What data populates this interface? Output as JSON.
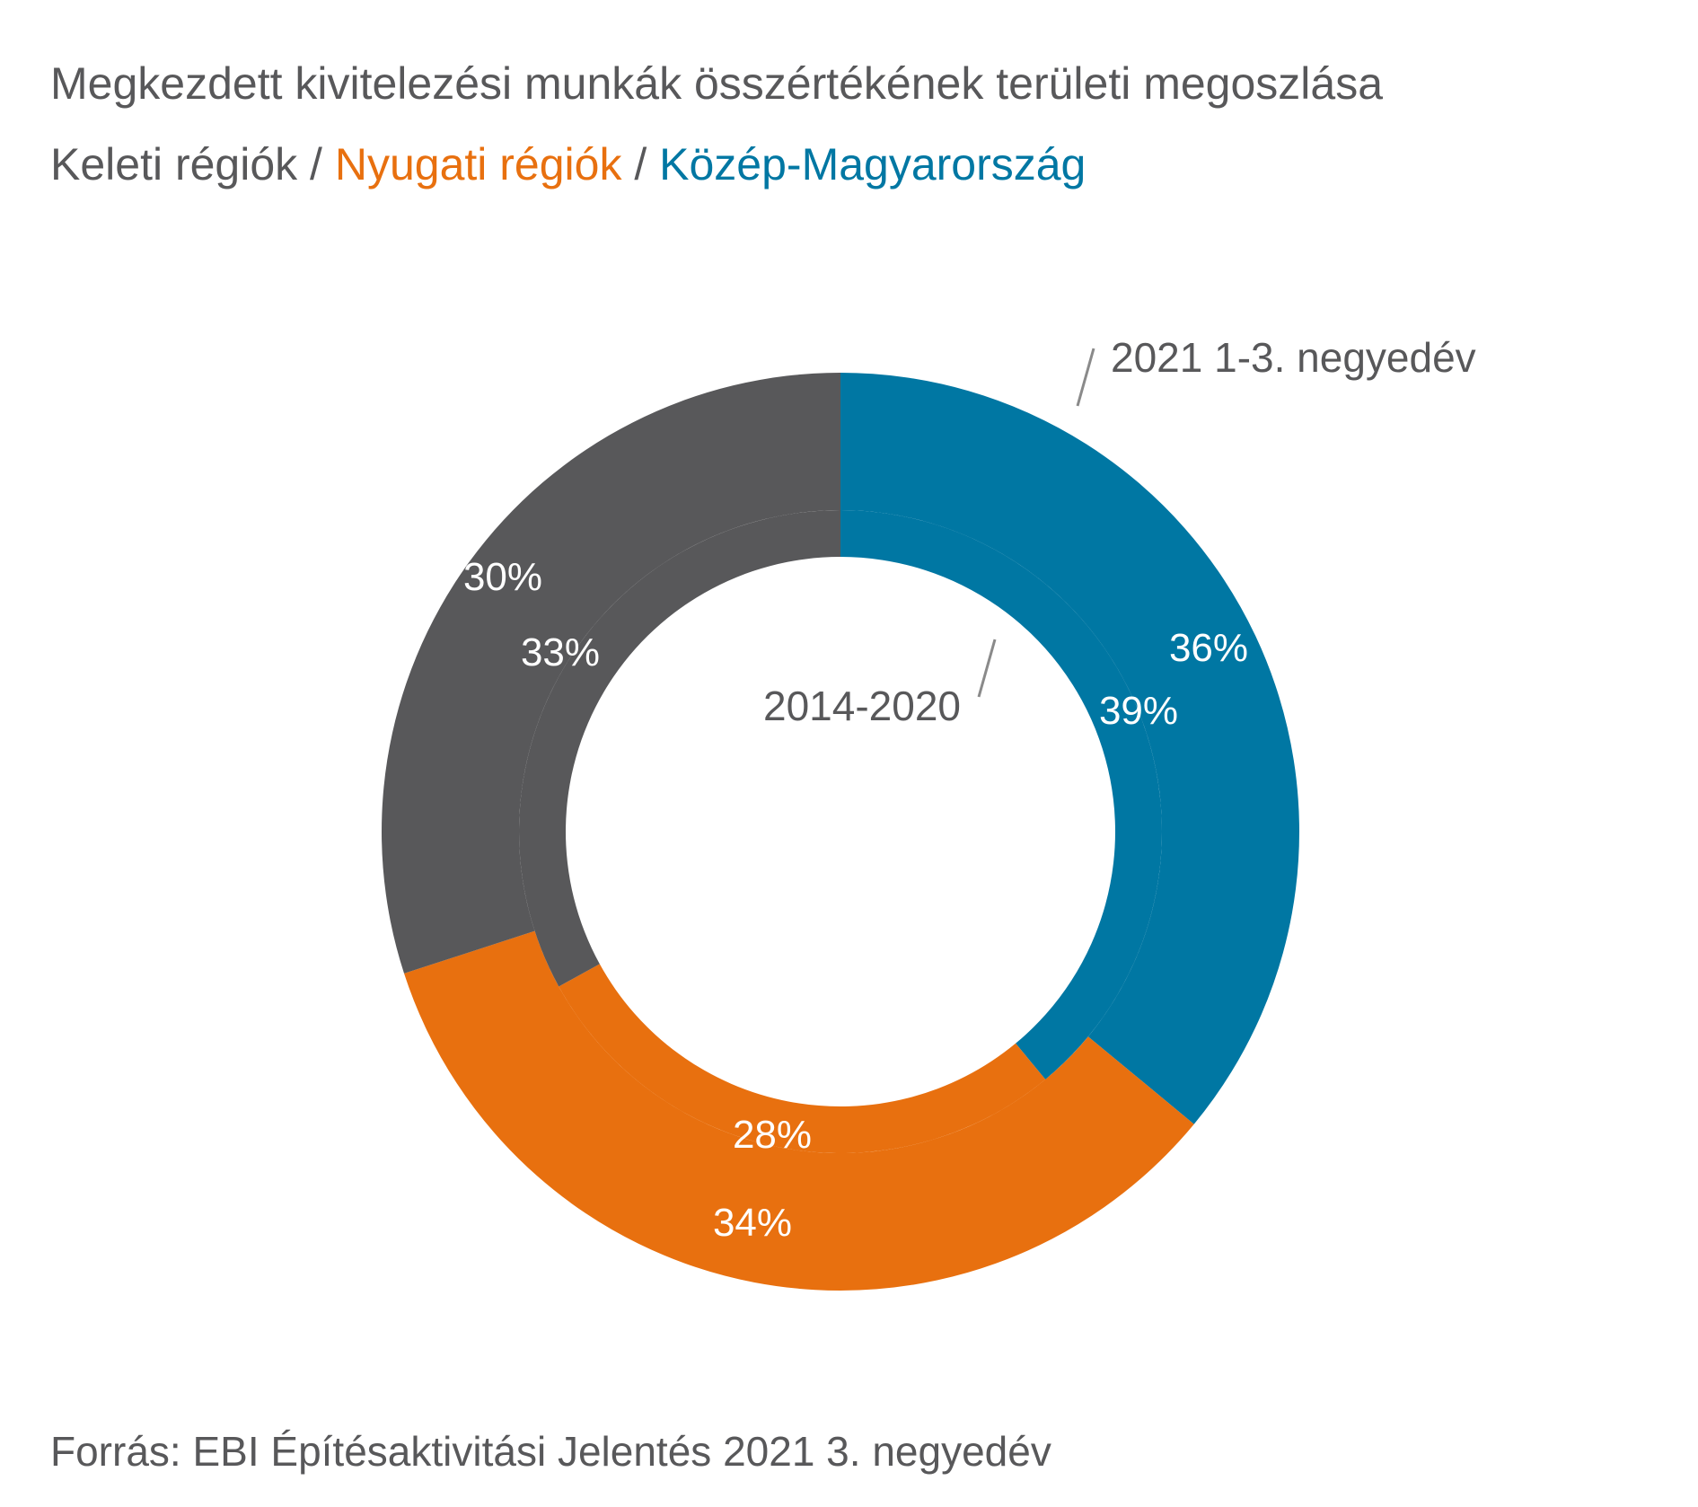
{
  "title": "Megkezdett kivitelezési munkák összértékének területi megoszlása",
  "subtitle": {
    "parts": [
      {
        "text": "Keleti régiók",
        "color": "#58585a"
      },
      {
        "text": "Nyugati régiók",
        "color": "#e8700f"
      },
      {
        "text": "Közép-Magyarország",
        "color": "#0077a3"
      }
    ],
    "separator": " / "
  },
  "source": "Forrás: EBI Építésaktivitási Jelentés 2021 3. negyedév",
  "chart_data": {
    "type": "pie",
    "subtype": "nested-donut",
    "categories": [
      "Közép-Magyarország",
      "Nyugati régiók",
      "Keleti régiók"
    ],
    "colors": [
      "#0077a3",
      "#e8700f",
      "#58585a"
    ],
    "series": [
      {
        "name": "2021 1-3. negyedév",
        "ring": "outer",
        "values": [
          36,
          34,
          30
        ],
        "labels": [
          "36%",
          "34%",
          "30%"
        ]
      },
      {
        "name": "2014-2020",
        "ring": "inner",
        "values": [
          39,
          28,
          33
        ],
        "labels": [
          "39%",
          "28%",
          "33%"
        ]
      }
    ],
    "label_color": "#ffffff",
    "annotation_color": "#58585a"
  }
}
